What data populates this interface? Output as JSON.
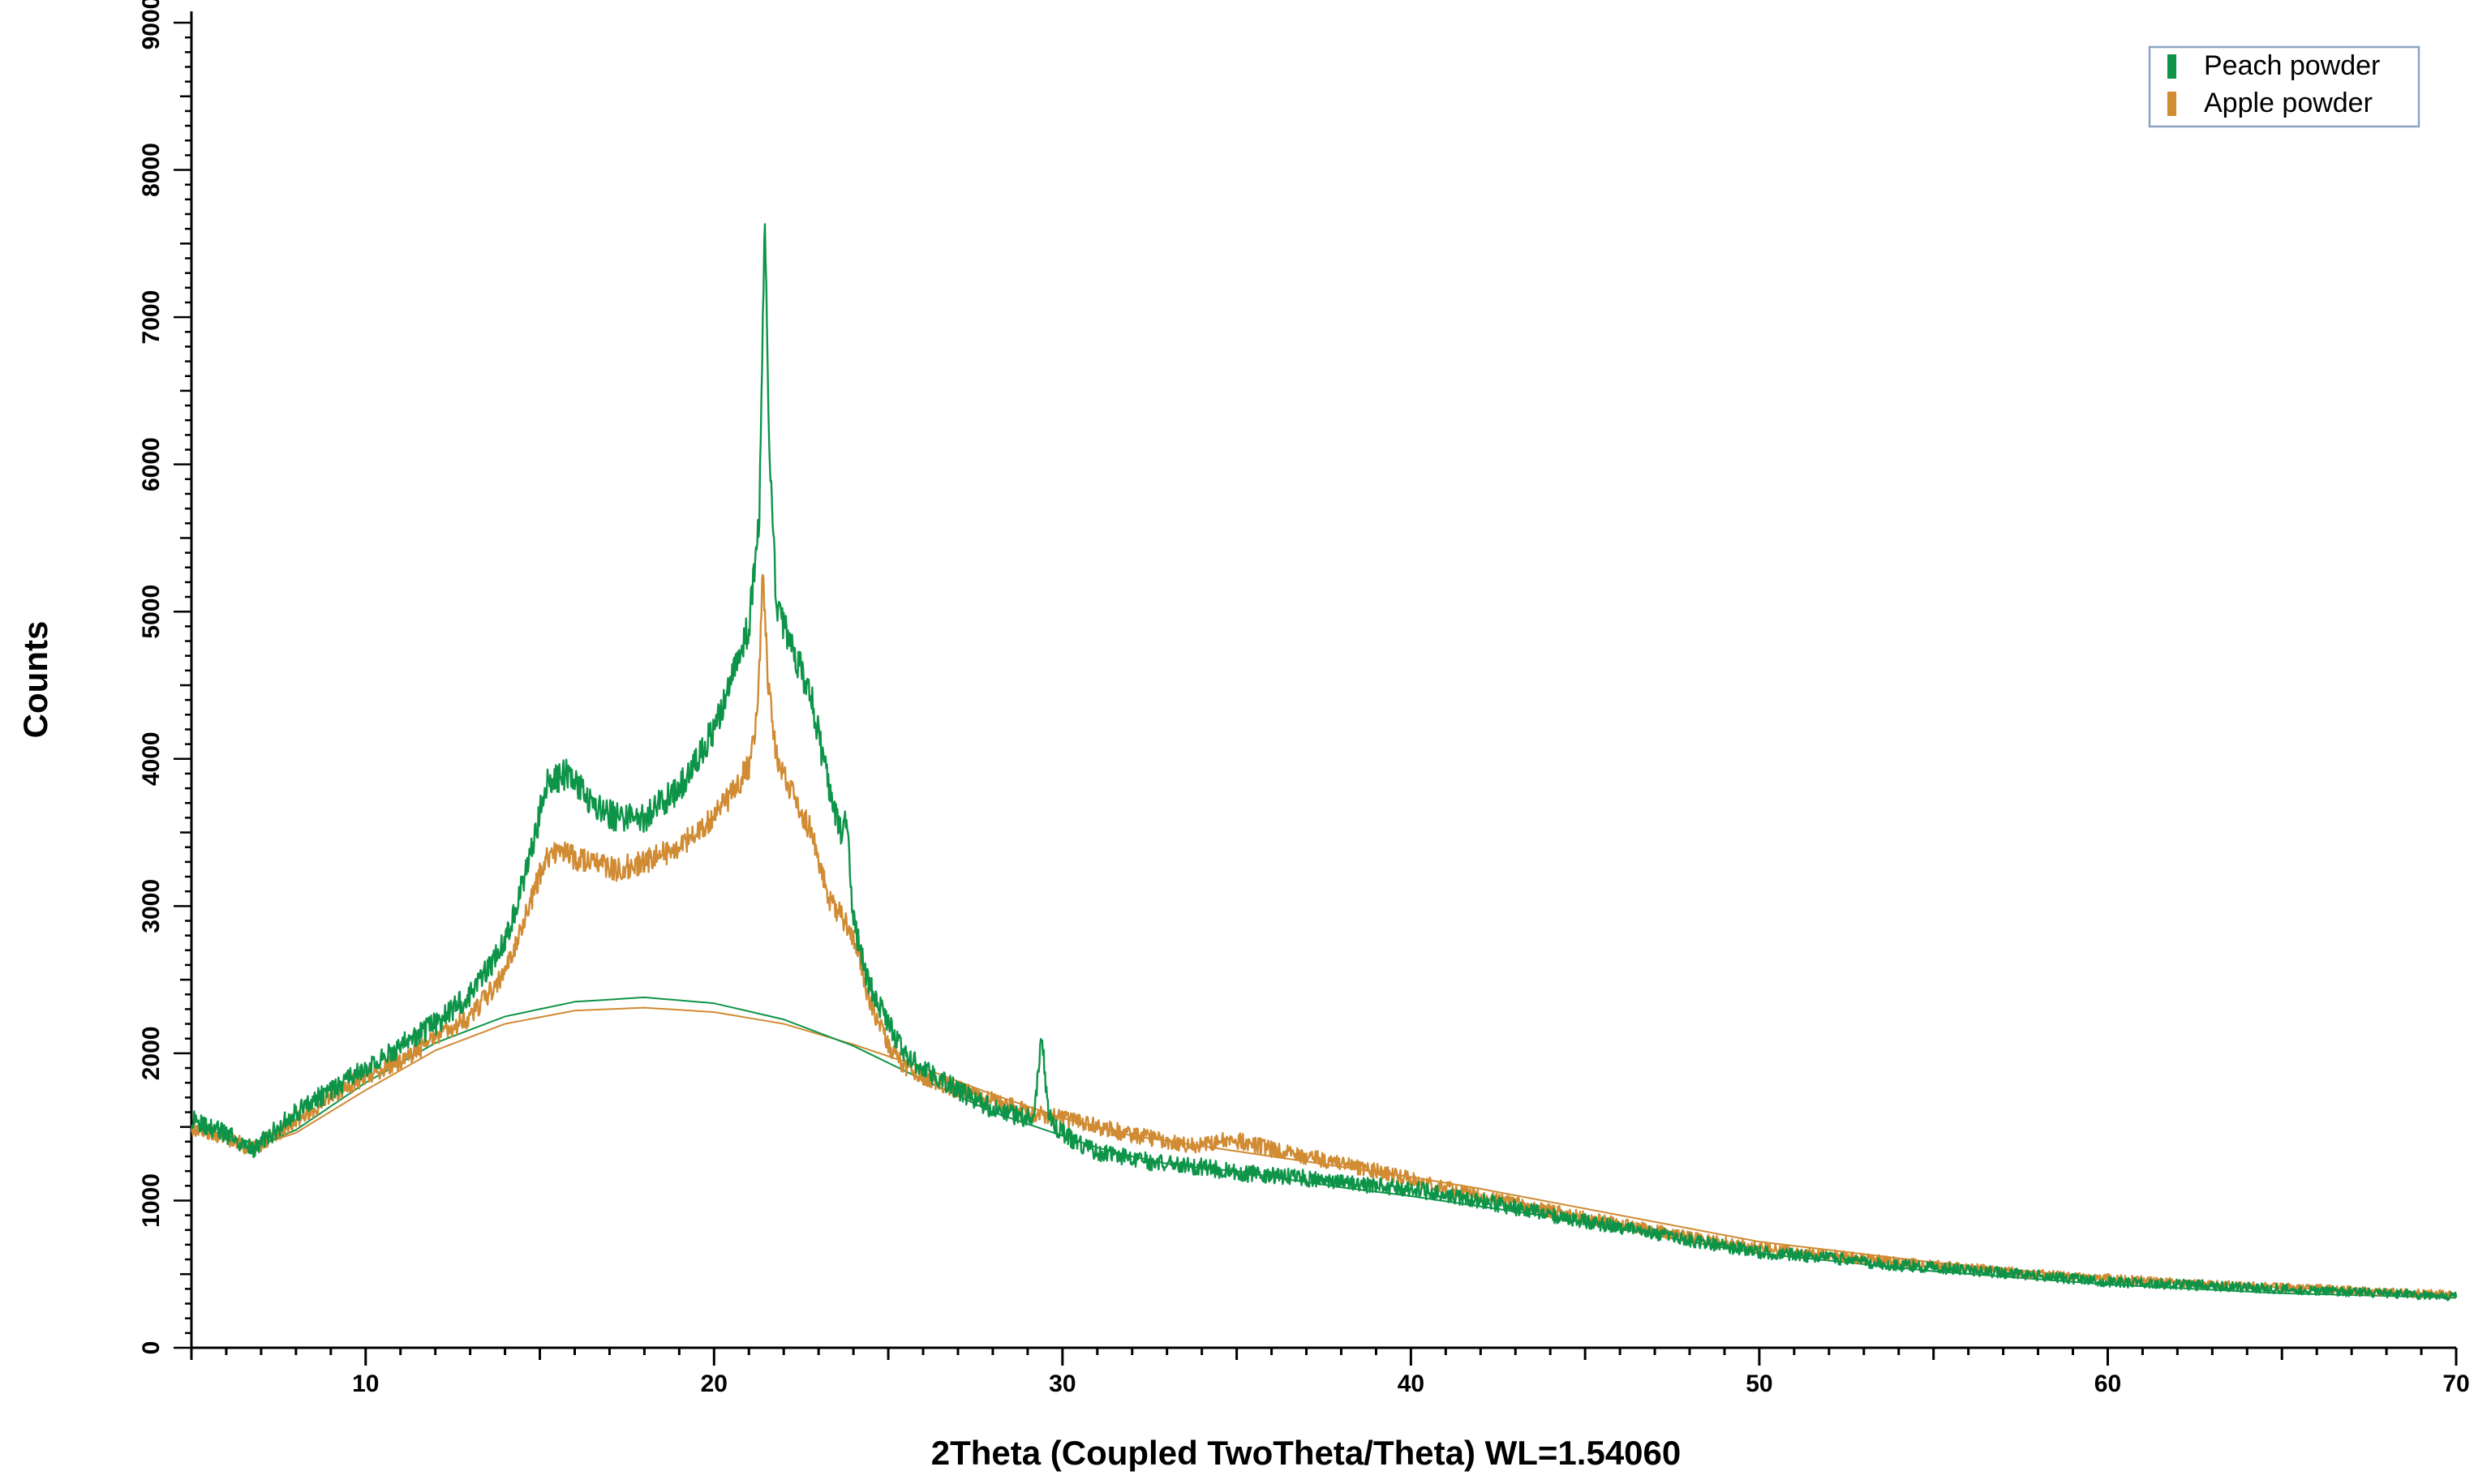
{
  "chart_data": {
    "type": "line",
    "title": "",
    "xlabel": "2Theta (Coupled TwoTheta/Theta) WL=1.54060",
    "ylabel": "Counts",
    "xlim": [
      5,
      70
    ],
    "ylim": [
      0,
      9000
    ],
    "x_ticks": [
      10,
      20,
      30,
      40,
      50,
      60,
      70
    ],
    "y_ticks": [
      0,
      1000,
      2000,
      3000,
      4000,
      5000,
      6000,
      7000,
      8000,
      9000
    ],
    "grid": false,
    "legend_position": "top-right",
    "series": [
      {
        "name": "Peach powder",
        "color": "#0e9448",
        "x": [
          5,
          6,
          6.8,
          8,
          9,
          10,
          11,
          12,
          13,
          14,
          14.7,
          15.2,
          15.8,
          16.5,
          17.2,
          18,
          19,
          20,
          20.6,
          21,
          21.3,
          21.45,
          21.6,
          21.8,
          22.2,
          22.8,
          23.3,
          23.6,
          23.8,
          24,
          24.4,
          25,
          25.5,
          26,
          27,
          28,
          29,
          29.2,
          29.4,
          29.6,
          29.9,
          30.5,
          31,
          32,
          33,
          34,
          35,
          36,
          37,
          38,
          39,
          40,
          42,
          44,
          46,
          48,
          50,
          52,
          54,
          56,
          58,
          60,
          62,
          64,
          66,
          68,
          70
        ],
        "y": [
          1550,
          1450,
          1350,
          1600,
          1750,
          1900,
          2050,
          2200,
          2400,
          2750,
          3300,
          3850,
          3900,
          3700,
          3600,
          3600,
          3800,
          4200,
          4600,
          4900,
          5600,
          7700,
          6000,
          5000,
          4800,
          4400,
          3800,
          3500,
          3600,
          2900,
          2500,
          2200,
          2000,
          1900,
          1750,
          1620,
          1560,
          1600,
          2150,
          1580,
          1480,
          1380,
          1330,
          1280,
          1250,
          1230,
          1190,
          1170,
          1150,
          1120,
          1100,
          1080,
          1000,
          900,
          820,
          730,
          650,
          610,
          560,
          530,
          490,
          450,
          430,
          410,
          390,
          370,
          350
        ]
      },
      {
        "name": "Apple powder",
        "color": "#d08b33",
        "x": [
          5,
          6,
          6.8,
          8,
          9,
          10,
          11,
          12,
          13,
          14,
          14.7,
          15.2,
          15.8,
          16.5,
          17.2,
          18,
          19,
          20,
          20.6,
          21,
          21.25,
          21.4,
          21.55,
          21.8,
          22.2,
          22.8,
          23.3,
          23.6,
          24,
          24.4,
          25,
          25.5,
          26,
          27,
          28,
          29,
          30,
          31,
          32,
          33,
          34,
          34.8,
          35.5,
          36,
          37,
          38,
          39,
          40,
          42,
          44,
          46,
          48,
          50,
          52,
          54,
          56,
          58,
          60,
          62,
          64,
          66,
          68,
          70
        ],
        "y": [
          1500,
          1420,
          1350,
          1550,
          1700,
          1850,
          1950,
          2100,
          2250,
          2550,
          3000,
          3350,
          3350,
          3280,
          3250,
          3300,
          3400,
          3600,
          3800,
          3950,
          4300,
          5300,
          4500,
          4000,
          3800,
          3500,
          3050,
          2950,
          2800,
          2400,
          2050,
          1900,
          1850,
          1750,
          1680,
          1600,
          1560,
          1500,
          1450,
          1400,
          1370,
          1420,
          1380,
          1350,
          1300,
          1250,
          1200,
          1150,
          1030,
          930,
          840,
          750,
          680,
          630,
          580,
          540,
          500,
          470,
          440,
          420,
          400,
          380,
          360
        ]
      },
      {
        "name": "",
        "color": "#0e9448",
        "x": [
          5,
          6,
          7,
          8,
          10,
          12,
          14,
          16,
          18,
          20,
          22,
          24,
          26,
          28,
          30,
          31,
          32,
          33,
          34,
          35,
          36,
          38,
          40,
          42,
          44,
          46,
          48,
          50,
          55,
          60,
          65,
          70
        ],
        "y": [
          1510,
          1440,
          1380,
          1480,
          1800,
          2070,
          2250,
          2350,
          2380,
          2340,
          2230,
          2050,
          1820,
          1600,
          1440,
          1360,
          1300,
          1250,
          1220,
          1200,
          1160,
          1090,
          1030,
          960,
          890,
          810,
          720,
          640,
          520,
          430,
          370,
          340
        ]
      },
      {
        "name": "",
        "color": "#d08b33",
        "x": [
          5,
          6,
          7,
          8,
          10,
          12,
          14,
          16,
          18,
          20,
          22,
          24,
          26,
          28,
          30,
          32,
          34,
          36,
          38,
          40,
          42,
          44,
          46,
          48,
          50,
          55,
          60,
          65,
          70
        ],
        "y": [
          1490,
          1420,
          1380,
          1460,
          1750,
          2020,
          2200,
          2290,
          2310,
          2280,
          2200,
          2060,
          1900,
          1720,
          1560,
          1440,
          1370,
          1300,
          1230,
          1160,
          1080,
          990,
          900,
          810,
          720,
          580,
          470,
          410,
          360
        ]
      }
    ]
  }
}
